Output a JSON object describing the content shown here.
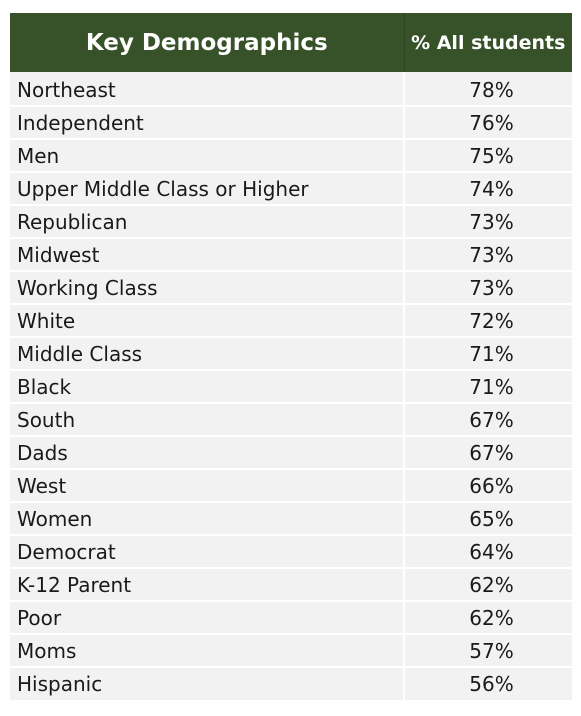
{
  "colors": {
    "header_bg": "#375128",
    "header_text": "#ffffff",
    "row_bg": "#f2f2f2",
    "row_separator": "#ffffff",
    "text": "#1a1a1a"
  },
  "chart_data": {
    "type": "table",
    "columns": [
      "Key Demographics",
      "% All students"
    ],
    "rows": [
      {
        "label": "Northeast",
        "value": "78%"
      },
      {
        "label": "Independent",
        "value": "76%"
      },
      {
        "label": "Men",
        "value": "75%"
      },
      {
        "label": "Upper Middle Class or Higher",
        "value": "74%"
      },
      {
        "label": "Republican",
        "value": "73%"
      },
      {
        "label": "Midwest",
        "value": "73%"
      },
      {
        "label": "Working Class",
        "value": "73%"
      },
      {
        "label": "White",
        "value": "72%"
      },
      {
        "label": "Middle Class",
        "value": "71%"
      },
      {
        "label": "Black",
        "value": "71%"
      },
      {
        "label": "South",
        "value": "67%"
      },
      {
        "label": "Dads",
        "value": "67%"
      },
      {
        "label": "West",
        "value": "66%"
      },
      {
        "label": "Women",
        "value": "65%"
      },
      {
        "label": "Democrat",
        "value": "64%"
      },
      {
        "label": "K-12 Parent",
        "value": "62%"
      },
      {
        "label": "Poor",
        "value": "62%"
      },
      {
        "label": "Moms",
        "value": "57%"
      },
      {
        "label": "Hispanic",
        "value": "56%"
      }
    ]
  }
}
